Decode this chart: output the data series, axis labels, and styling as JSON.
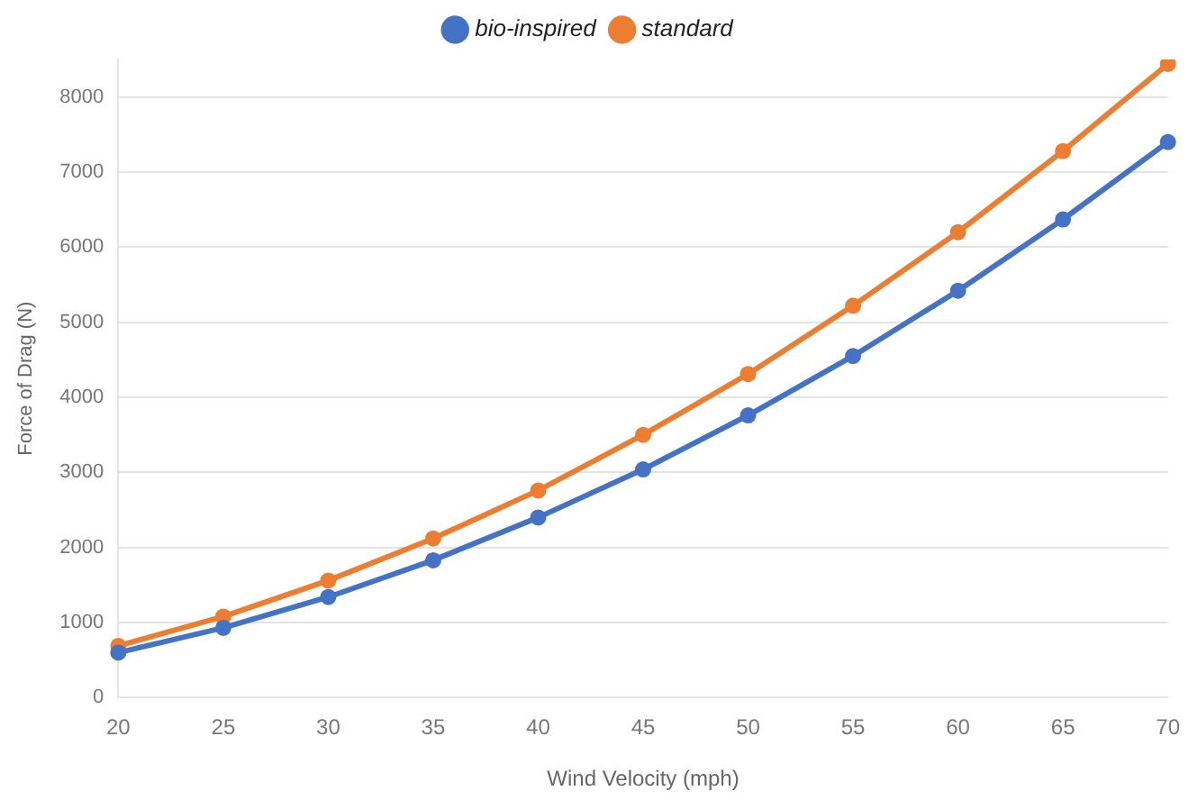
{
  "chart_data": {
    "type": "line",
    "xlabel": "Wind Velocity (mph)",
    "ylabel": "Force of Drag (N)",
    "categories": [
      "20",
      "25",
      "30",
      "35",
      "40",
      "45",
      "50",
      "55",
      "60",
      "65",
      "70"
    ],
    "series": [
      {
        "name": "bio-inspired",
        "color": "#4472c4",
        "values": [
          600,
          930,
          1340,
          1830,
          2400,
          3040,
          3760,
          4550,
          5420,
          6370,
          7400
        ]
      },
      {
        "name": "standard",
        "color": "#ed7d31",
        "values": [
          690,
          1080,
          1560,
          2120,
          2760,
          3500,
          4310,
          5220,
          6200,
          7280,
          8440
        ]
      }
    ],
    "ylim": [
      0,
      8500
    ],
    "yticks": [
      0,
      1000,
      2000,
      3000,
      4000,
      5000,
      6000,
      7000,
      8000
    ],
    "grid": "y",
    "legend": "top",
    "marker": "circle",
    "line_style": "solid"
  }
}
